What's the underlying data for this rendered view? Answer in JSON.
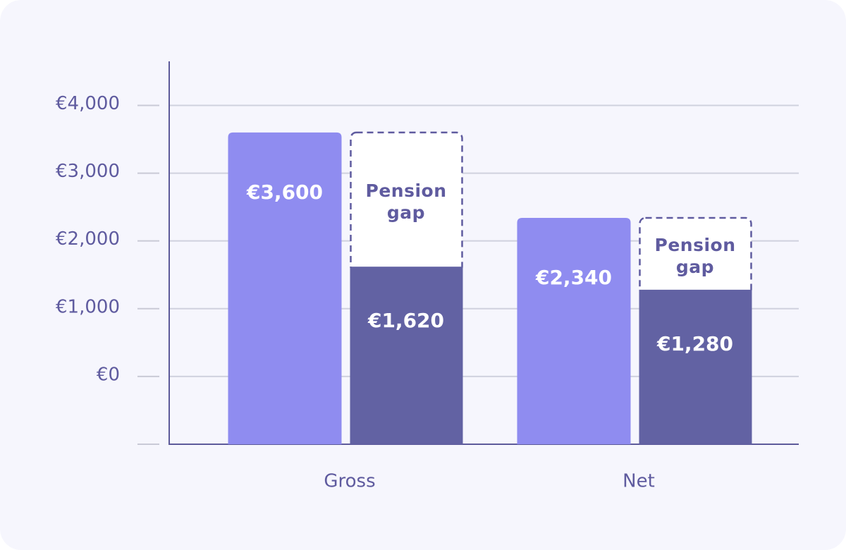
{
  "chart_data": {
    "type": "bar",
    "categories": [
      "Gross",
      "Net"
    ],
    "series": [
      {
        "color": "#8f8cf0",
        "values": [
          3600,
          2340
        ],
        "value_labels": [
          "€3,600",
          "€2,340"
        ]
      },
      {
        "color": "#6262a3",
        "values": [
          1620,
          1280
        ],
        "value_labels": [
          "€1,620",
          "€1,280"
        ]
      }
    ],
    "annotation": "Pension gap",
    "ylim": [
      -1000,
      4650
    ],
    "yticks": [
      {
        "value": 0,
        "label": "€0"
      },
      {
        "value": 1000,
        "label": "€1,000"
      },
      {
        "value": 2000,
        "label": "€2,000"
      },
      {
        "value": 3000,
        "label": "€3,000"
      },
      {
        "value": 4000,
        "label": "€4,000"
      }
    ],
    "grid": true
  }
}
